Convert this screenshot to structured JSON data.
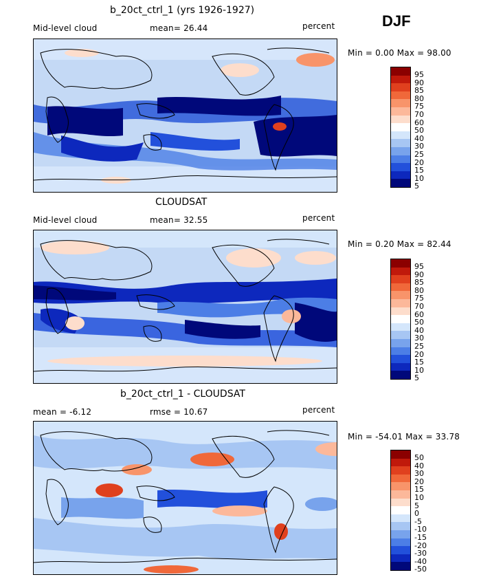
{
  "season": "DJF",
  "panels": [
    {
      "title": "b_20ct_ctrl_1 (yrs 1926-1927)",
      "left_label": "Mid-level cloud",
      "center_label": "mean=  26.44",
      "units": "percent",
      "minmax": "Min =   0.00 Max =  98.00",
      "colorbar_labels": [
        "95",
        "90",
        "85",
        "80",
        "75",
        "70",
        "60",
        "50",
        "40",
        "30",
        "25",
        "20",
        "15",
        "10",
        "5"
      ]
    },
    {
      "title": "CLOUDSAT",
      "left_label": "Mid-level cloud",
      "center_label": "mean=  32.55",
      "units": "percent",
      "minmax": "Min =   0.20 Max =  82.44",
      "colorbar_labels": [
        "95",
        "90",
        "85",
        "80",
        "75",
        "70",
        "60",
        "50",
        "40",
        "30",
        "25",
        "20",
        "15",
        "10",
        "5"
      ]
    },
    {
      "title": "b_20ct_ctrl_1 - CLOUDSAT",
      "left_label": "mean =   -6.12",
      "center_label": "rmse =  10.67",
      "units": "percent",
      "minmax": "Min = -54.01 Max =  33.78",
      "colorbar_labels": [
        "50",
        "40",
        "30",
        "20",
        "15",
        "10",
        "5",
        "0",
        "-5",
        "-10",
        "-15",
        "-20",
        "-30",
        "-40",
        "-50"
      ]
    }
  ],
  "colorbar_colors": [
    "#8b0000",
    "#c0190b",
    "#e0401e",
    "#f0683a",
    "#f8946a",
    "#fcb89a",
    "#fdddcc",
    "#ffffff",
    "#d4e6fb",
    "#a7c6f3",
    "#78a3ec",
    "#4c7ee6",
    "#2250db",
    "#0d28bd",
    "#00087a"
  ]
}
